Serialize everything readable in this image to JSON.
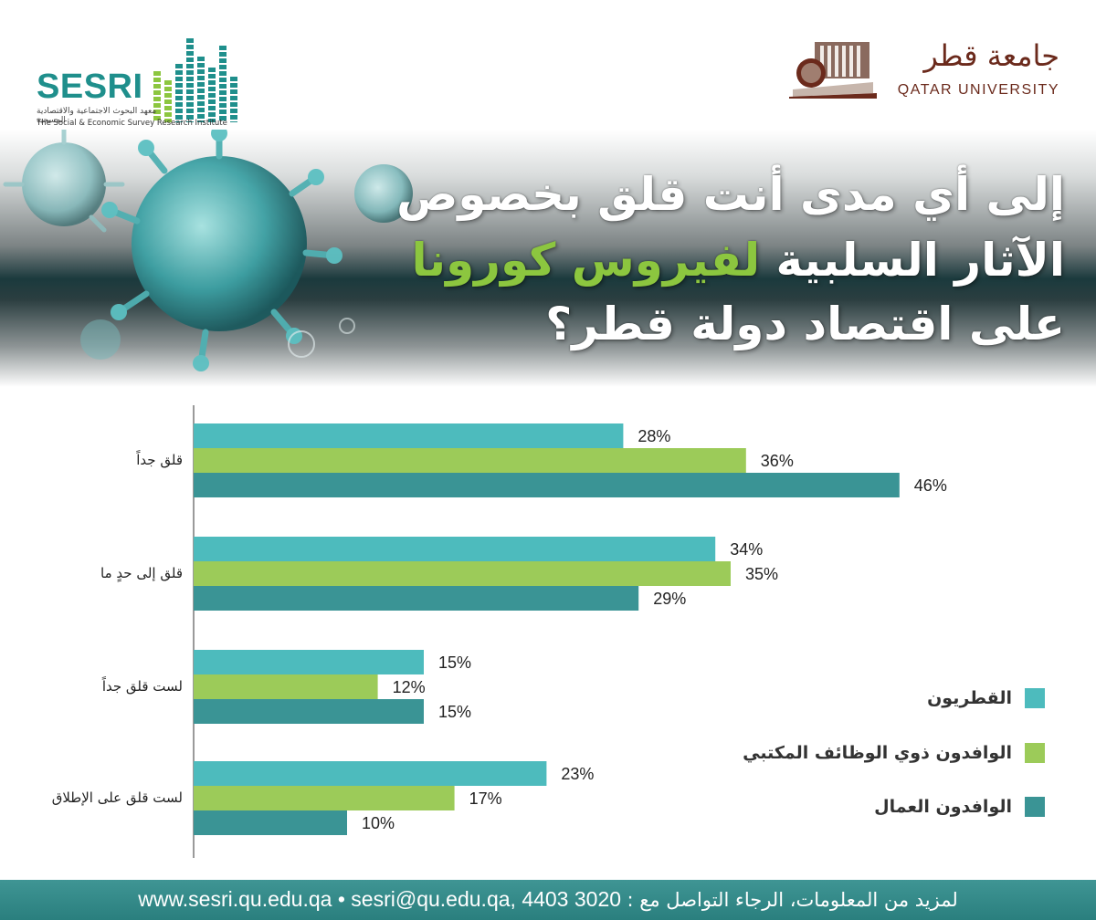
{
  "header": {
    "sesri_logo": {
      "name": "SESRI",
      "arabic_subtitle": "معهد البحوث الاجتماعية والاقتصادية المسحية",
      "english_subtitle": "The Social & Economic Survey Research Institute",
      "colors": {
        "teal": "#1f8f8c",
        "green": "#8cc63f"
      }
    },
    "qu_logo": {
      "arabic_name": "جامعة قطر",
      "english_name": "QATAR UNIVERSITY",
      "color": "#6b2a1c"
    }
  },
  "banner": {
    "title_line1": "إلى أي مدى أنت قلق بخصوص",
    "title_line2_before": "الآثار السلبية ",
    "title_line2_accent": "لفيروس كورونا",
    "title_line3": "على اقتصاد دولة قطر؟",
    "accent_color": "#8cc63f",
    "background_art": "coronavirus-illustration"
  },
  "chart_data": {
    "type": "bar",
    "orientation": "horizontal",
    "categories": [
      "قلق جداً",
      "قلق إلى حدٍ ما",
      "لست قلق جداً",
      "لست قلق على الإطلاق"
    ],
    "series": [
      {
        "name": "القطريون",
        "values": [
          28,
          34,
          15,
          23
        ],
        "color": "#4dbbbd"
      },
      {
        "name": "الوافدون ذوي الوظائف المكتبي",
        "values": [
          36,
          35,
          12,
          17
        ],
        "color": "#9ccb59"
      },
      {
        "name": "الوافدون العمال",
        "values": [
          46,
          29,
          15,
          10
        ],
        "color": "#3a9495"
      }
    ],
    "value_suffix": "%",
    "xlim": [
      0,
      50
    ],
    "grid": false,
    "legend_position": "right"
  },
  "footer": {
    "contact_prefix": "لمزيد من المعلومات، الرجاء التواصل مع :",
    "phone": "4403 3020",
    "email": "sesri@qu.edu.qa,",
    "separator": "•",
    "website": "www.sesri.qu.edu.qa",
    "background": "#2f8786"
  }
}
